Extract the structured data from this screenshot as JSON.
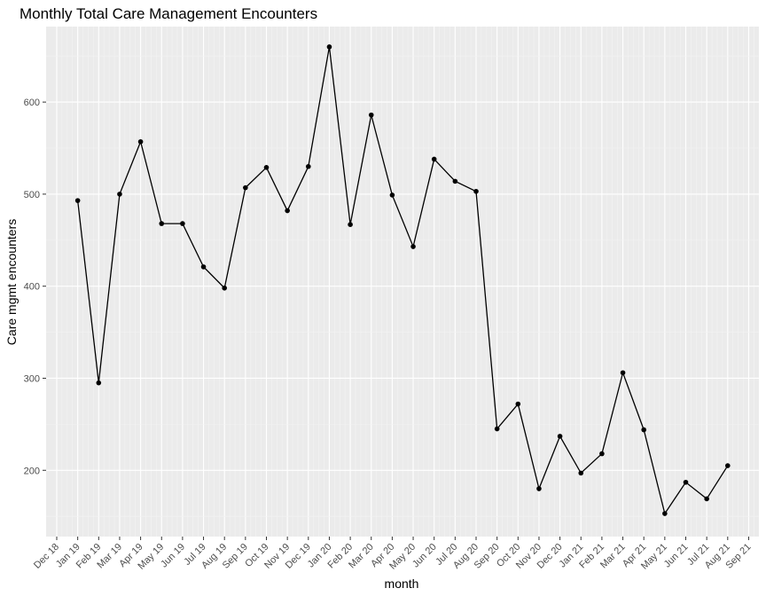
{
  "chart_data": {
    "type": "line",
    "title": "Monthly Total Care Management Encounters",
    "xlabel": "month",
    "ylabel": "Care mgmt encounters",
    "x_ticks": [
      "Dec 18",
      "Jan 19",
      "Feb 19",
      "Mar 19",
      "Apr 19",
      "May 19",
      "Jun 19",
      "Jul 19",
      "Aug 19",
      "Sep 19",
      "Oct 19",
      "Nov 19",
      "Dec 19",
      "Jan 20",
      "Feb 20",
      "Mar 20",
      "Apr 20",
      "May 20",
      "Jun 20",
      "Jul 20",
      "Aug 20",
      "Sep 20",
      "Oct 20",
      "Nov 20",
      "Dec 20",
      "Jan 21",
      "Feb 21",
      "Mar 21",
      "Apr 21",
      "May 21",
      "Jun 21",
      "Jul 21",
      "Aug 21",
      "Sep 21"
    ],
    "y_ticks": [
      200,
      300,
      400,
      500,
      600
    ],
    "ylim": [
      128,
      682
    ],
    "grid": true,
    "series": [
      {
        "color": "#000000",
        "points": [
          {
            "x": "Jan 19",
            "y": 493
          },
          {
            "x": "Feb 19",
            "y": 295
          },
          {
            "x": "Mar 19",
            "y": 500
          },
          {
            "x": "Apr 19",
            "y": 557
          },
          {
            "x": "May 19",
            "y": 468
          },
          {
            "x": "Jun 19",
            "y": 468
          },
          {
            "x": "Jul 19",
            "y": 421
          },
          {
            "x": "Aug 19",
            "y": 398
          },
          {
            "x": "Sep 19",
            "y": 507
          },
          {
            "x": "Oct 19",
            "y": 529
          },
          {
            "x": "Nov 19",
            "y": 482
          },
          {
            "x": "Dec 19",
            "y": 530
          },
          {
            "x": "Jan 20",
            "y": 660
          },
          {
            "x": "Feb 20",
            "y": 467
          },
          {
            "x": "Mar 20",
            "y": 586
          },
          {
            "x": "Apr 20",
            "y": 499
          },
          {
            "x": "May 20",
            "y": 443
          },
          {
            "x": "Jun 20",
            "y": 538
          },
          {
            "x": "Jul 20",
            "y": 514
          },
          {
            "x": "Aug 20",
            "y": 503
          },
          {
            "x": "Sep 20",
            "y": 245
          },
          {
            "x": "Oct 20",
            "y": 272
          },
          {
            "x": "Nov 20",
            "y": 180
          },
          {
            "x": "Dec 20",
            "y": 237
          },
          {
            "x": "Jan 21",
            "y": 197
          },
          {
            "x": "Feb 21",
            "y": 218
          },
          {
            "x": "Mar 21",
            "y": 306
          },
          {
            "x": "Apr 21",
            "y": 244
          },
          {
            "x": "May 21",
            "y": 153
          },
          {
            "x": "Jun 21",
            "y": 187
          },
          {
            "x": "Jul 21",
            "y": 169
          },
          {
            "x": "Aug 21",
            "y": 205
          }
        ]
      }
    ]
  }
}
